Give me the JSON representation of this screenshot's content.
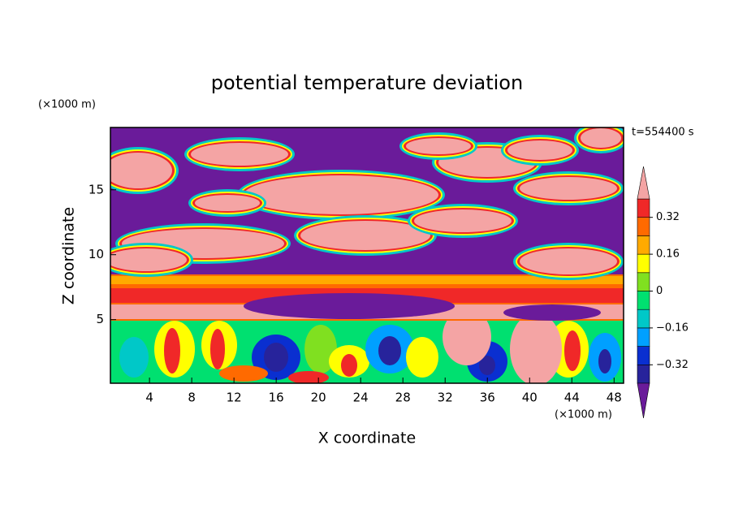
{
  "chart_data": {
    "type": "contour",
    "title": "potential temperature deviation",
    "xlabel": "X coordinate",
    "ylabel": "Z coordinate",
    "xlabel_units": "(×1000 m)",
    "ylabel_units": "(×1000 m)",
    "annotation": "t=554400 s",
    "xlim": [
      0.3,
      48.9
    ],
    "ylim": [
      0.1,
      19.8
    ],
    "xticks": [
      4,
      8,
      12,
      16,
      20,
      24,
      28,
      32,
      36,
      40,
      44,
      48
    ],
    "yticks": [
      5,
      10,
      15
    ],
    "colorbar": {
      "lim": [
        -0.4,
        0.4
      ],
      "ticks": [
        {
          "value": -0.32,
          "label": "−0.32"
        },
        {
          "value": -0.16,
          "label": "−0.16"
        },
        0,
        0.16,
        0.32
      ],
      "colors": [
        "#6a1b9a",
        "#27239b",
        "#0a2fd0",
        "#00a0ff",
        "#00c8c8",
        "#00e070",
        "#80e020",
        "#ffff00",
        "#ffaa00",
        "#ff6a00",
        "#f02828",
        "#f4a4a4"
      ]
    }
  }
}
